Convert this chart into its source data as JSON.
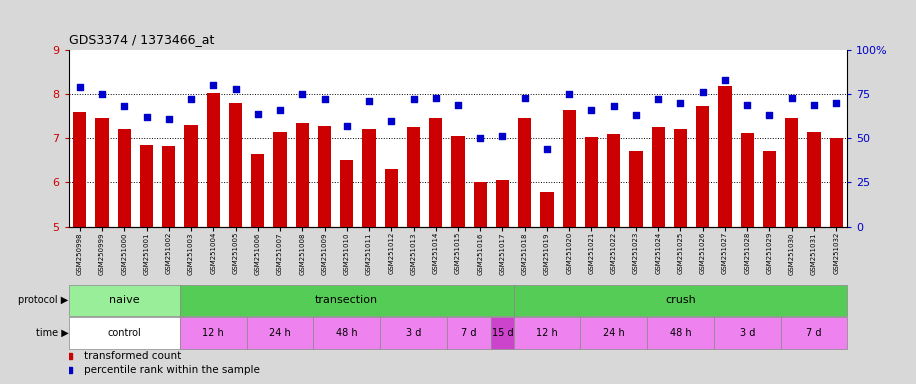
{
  "title": "GDS3374 / 1373466_at",
  "samples": [
    "GSM250998",
    "GSM250999",
    "GSM251000",
    "GSM251001",
    "GSM251002",
    "GSM251003",
    "GSM251004",
    "GSM251005",
    "GSM251006",
    "GSM251007",
    "GSM251008",
    "GSM251009",
    "GSM251010",
    "GSM251011",
    "GSM251012",
    "GSM251013",
    "GSM251014",
    "GSM251015",
    "GSM251016",
    "GSM251017",
    "GSM251018",
    "GSM251019",
    "GSM251020",
    "GSM251021",
    "GSM251022",
    "GSM251023",
    "GSM251024",
    "GSM251025",
    "GSM251026",
    "GSM251027",
    "GSM251028",
    "GSM251029",
    "GSM251030",
    "GSM251031",
    "GSM251032"
  ],
  "bar_values": [
    7.6,
    7.45,
    7.2,
    6.85,
    6.82,
    7.3,
    8.03,
    7.8,
    6.65,
    7.15,
    7.35,
    7.28,
    6.5,
    7.2,
    6.3,
    7.25,
    7.45,
    7.05,
    6.0,
    6.05,
    7.45,
    5.78,
    7.65,
    7.02,
    7.1,
    6.7,
    7.25,
    7.22,
    7.72,
    8.18,
    7.12,
    6.72,
    7.45,
    7.15,
    7.0
  ],
  "dot_values": [
    79,
    75,
    68,
    62,
    61,
    72,
    80,
    78,
    64,
    66,
    75,
    72,
    57,
    71,
    60,
    72,
    73,
    69,
    50,
    51,
    73,
    44,
    75,
    66,
    68,
    63,
    72,
    70,
    76,
    83,
    69,
    63,
    73,
    69,
    70
  ],
  "bar_color": "#cc0000",
  "dot_color": "#0000cc",
  "ylim_left": [
    5,
    9
  ],
  "ylim_right": [
    0,
    100
  ],
  "yticks_left": [
    5,
    6,
    7,
    8,
    9
  ],
  "yticks_right": [
    0,
    25,
    50,
    75,
    100
  ],
  "ytick_labels_right": [
    "0",
    "25",
    "50",
    "75",
    "100%"
  ],
  "grid_values": [
    6,
    7,
    8
  ],
  "protocol_defs": [
    {
      "label": "naive",
      "start": 0,
      "end": 4,
      "color": "#99ee99"
    },
    {
      "label": "transection",
      "start": 5,
      "end": 19,
      "color": "#55cc55"
    },
    {
      "label": "crush",
      "start": 20,
      "end": 34,
      "color": "#55cc55"
    }
  ],
  "time_defs": [
    {
      "label": "control",
      "start": 0,
      "end": 4,
      "color": "#ffffff"
    },
    {
      "label": "12 h",
      "start": 5,
      "end": 7,
      "color": "#ee82ee"
    },
    {
      "label": "24 h",
      "start": 8,
      "end": 10,
      "color": "#ee82ee"
    },
    {
      "label": "48 h",
      "start": 11,
      "end": 13,
      "color": "#ee82ee"
    },
    {
      "label": "3 d",
      "start": 14,
      "end": 16,
      "color": "#ee82ee"
    },
    {
      "label": "7 d",
      "start": 17,
      "end": 18,
      "color": "#ee82ee"
    },
    {
      "label": "15 d",
      "start": 19,
      "end": 19,
      "color": "#cc44cc"
    },
    {
      "label": "12 h",
      "start": 20,
      "end": 22,
      "color": "#ee82ee"
    },
    {
      "label": "24 h",
      "start": 23,
      "end": 25,
      "color": "#ee82ee"
    },
    {
      "label": "48 h",
      "start": 26,
      "end": 28,
      "color": "#ee82ee"
    },
    {
      "label": "3 d",
      "start": 29,
      "end": 31,
      "color": "#ee82ee"
    },
    {
      "label": "7 d",
      "start": 32,
      "end": 34,
      "color": "#ee82ee"
    }
  ],
  "legend_items": [
    {
      "label": "transformed count",
      "color": "#cc0000"
    },
    {
      "label": "percentile rank within the sample",
      "color": "#0000cc"
    }
  ],
  "bg_color": "#d8d8d8",
  "plot_bg_color": "#ffffff"
}
